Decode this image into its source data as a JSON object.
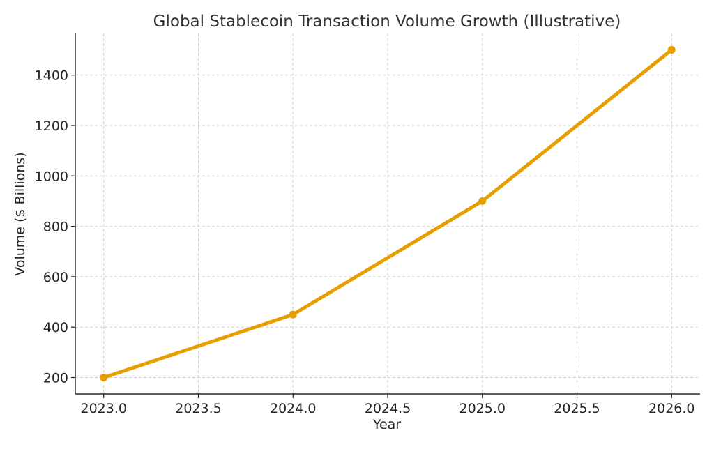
{
  "chart_data": {
    "type": "line",
    "title": "Global Stablecoin Transaction Volume Growth (Illustrative)",
    "xlabel": "Year",
    "ylabel": "Volume ($ Billions)",
    "x": [
      2023,
      2024,
      2025,
      2026
    ],
    "series": [
      {
        "name": "",
        "values": [
          200,
          450,
          900,
          1500
        ],
        "color": "#E69F00"
      }
    ],
    "xlim": [
      2022.85,
      2026.15
    ],
    "ylim": [
      135,
      1565
    ],
    "xticks": [
      2023.0,
      2023.5,
      2024.0,
      2024.5,
      2025.0,
      2025.5,
      2026.0
    ],
    "xtick_labels": [
      "2023.0",
      "2023.5",
      "2024.0",
      "2024.5",
      "2025.0",
      "2025.5",
      "2026.0"
    ],
    "yticks": [
      200,
      400,
      600,
      800,
      1000,
      1200,
      1400
    ],
    "ytick_labels": [
      "200",
      "400",
      "600",
      "800",
      "1000",
      "1200",
      "1400"
    ],
    "grid": true,
    "grid_style": "dashed",
    "markers": true,
    "legend": "none"
  }
}
